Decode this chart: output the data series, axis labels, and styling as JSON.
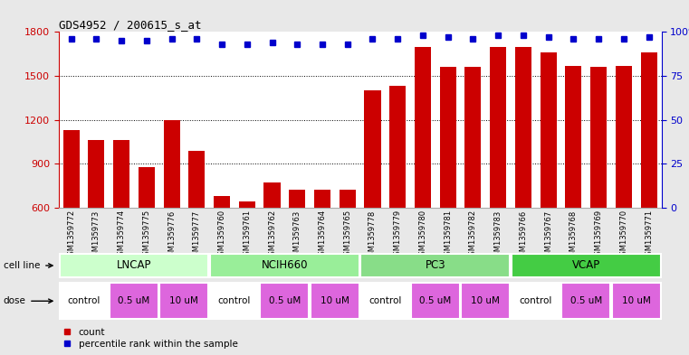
{
  "title": "GDS4952 / 200615_s_at",
  "samples": [
    "GSM1359772",
    "GSM1359773",
    "GSM1359774",
    "GSM1359775",
    "GSM1359776",
    "GSM1359777",
    "GSM1359760",
    "GSM1359761",
    "GSM1359762",
    "GSM1359763",
    "GSM1359764",
    "GSM1359765",
    "GSM1359778",
    "GSM1359779",
    "GSM1359780",
    "GSM1359781",
    "GSM1359782",
    "GSM1359783",
    "GSM1359766",
    "GSM1359767",
    "GSM1359768",
    "GSM1359769",
    "GSM1359770",
    "GSM1359771"
  ],
  "counts": [
    1130,
    1060,
    1060,
    880,
    1200,
    990,
    680,
    640,
    770,
    720,
    720,
    720,
    1400,
    1430,
    1700,
    1560,
    1560,
    1700,
    1700,
    1660,
    1570,
    1560,
    1570,
    1660
  ],
  "percentile_ranks": [
    96,
    96,
    95,
    95,
    96,
    96,
    93,
    93,
    94,
    93,
    93,
    93,
    96,
    96,
    98,
    97,
    96,
    98,
    98,
    97,
    96,
    96,
    96,
    97
  ],
  "bar_color": "#cc0000",
  "dot_color": "#0000cc",
  "ylim_left": [
    600,
    1800
  ],
  "ylim_right": [
    0,
    100
  ],
  "yticks_left": [
    600,
    900,
    1200,
    1500,
    1800
  ],
  "yticks_right": [
    0,
    25,
    50,
    75,
    100
  ],
  "cell_lines": [
    {
      "label": "LNCAP",
      "start": 0,
      "end": 6,
      "color": "#ccffcc"
    },
    {
      "label": "NCIH660",
      "start": 6,
      "end": 12,
      "color": "#99ee99"
    },
    {
      "label": "PC3",
      "start": 12,
      "end": 18,
      "color": "#88dd88"
    },
    {
      "label": "VCAP",
      "start": 18,
      "end": 24,
      "color": "#44cc44"
    }
  ],
  "doses": [
    {
      "label": "control",
      "start": 0,
      "end": 2,
      "color": "#ffffff"
    },
    {
      "label": "0.5 uM",
      "start": 2,
      "end": 4,
      "color": "#dd66dd"
    },
    {
      "label": "10 uM",
      "start": 4,
      "end": 6,
      "color": "#dd66dd"
    },
    {
      "label": "control",
      "start": 6,
      "end": 8,
      "color": "#ffffff"
    },
    {
      "label": "0.5 uM",
      "start": 8,
      "end": 10,
      "color": "#dd66dd"
    },
    {
      "label": "10 uM",
      "start": 10,
      "end": 12,
      "color": "#dd66dd"
    },
    {
      "label": "control",
      "start": 12,
      "end": 14,
      "color": "#ffffff"
    },
    {
      "label": "0.5 uM",
      "start": 14,
      "end": 16,
      "color": "#dd66dd"
    },
    {
      "label": "10 uM",
      "start": 16,
      "end": 18,
      "color": "#dd66dd"
    },
    {
      "label": "control",
      "start": 18,
      "end": 20,
      "color": "#ffffff"
    },
    {
      "label": "0.5 uM",
      "start": 20,
      "end": 22,
      "color": "#dd66dd"
    },
    {
      "label": "10 uM",
      "start": 22,
      "end": 24,
      "color": "#dd66dd"
    }
  ],
  "fig_bg": "#e8e8e8",
  "plot_bg": "#ffffff",
  "xtick_bg": "#cccccc"
}
